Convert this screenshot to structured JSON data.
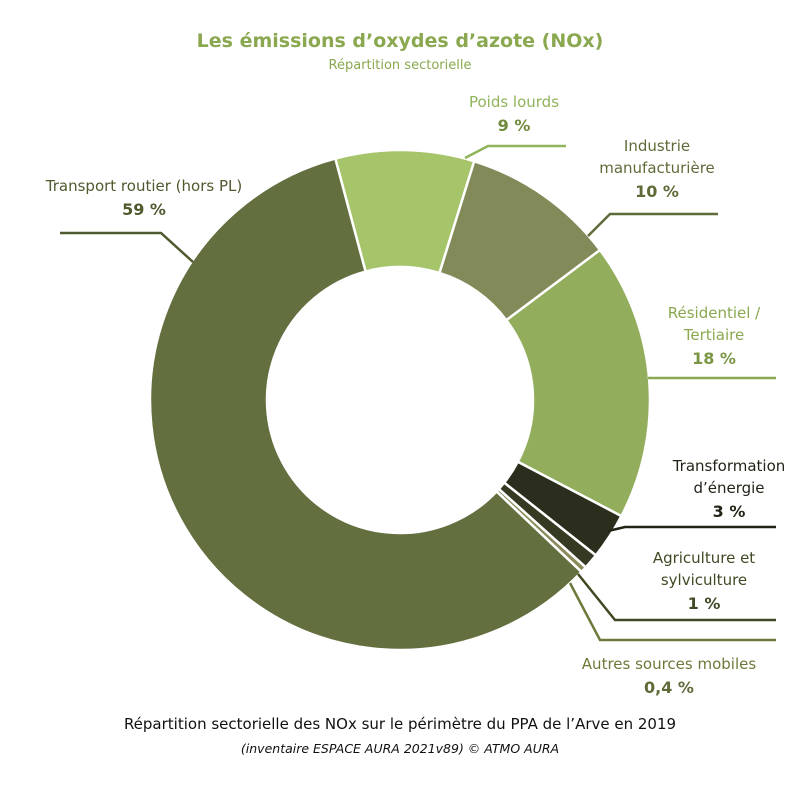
{
  "chart_data": {
    "type": "pie",
    "title": "Les émissions d’oxydes d’azote (NOx)",
    "subtitle": "Répartition sectorielle",
    "footer": "Répartition sectorielle des NOx sur le périmètre du PPA de l’Arve en 2019",
    "source": "(inventaire ESPACE AURA 2021v89) © ATMO AURA",
    "unit": "%",
    "slices": [
      {
        "label_lines": [
          "Poids lourds"
        ],
        "value": 9,
        "value_label": "9 %",
        "color": "#a6c46a",
        "label_color": "#8fb45a",
        "value_color": "#6f8a3a"
      },
      {
        "label_lines": [
          "Industrie",
          "manufacturière"
        ],
        "value": 10,
        "value_label": "10 %",
        "color": "#838a59",
        "label_color": "#5e6b38",
        "value_color": "#5e6b38"
      },
      {
        "label_lines": [
          "Résidentiel /",
          "Tertiaire"
        ],
        "value": 18,
        "value_label": "18 %",
        "color": "#92ad5c",
        "label_color": "#8aa84f",
        "value_color": "#7a9645"
      },
      {
        "label_lines": [
          "Transformation",
          "d’énergie"
        ],
        "value": 3,
        "value_label": "3 %",
        "color": "#2b2e1c",
        "label_color": "#1f2416",
        "value_color": "#1f2416"
      },
      {
        "label_lines": [
          "Agriculture et",
          "sylviculture"
        ],
        "value": 1,
        "value_label": "1 %",
        "color": "#363a22",
        "label_color": "#3f4a24",
        "value_color": "#3f4a24"
      },
      {
        "label_lines": [
          "Autres sources mobiles"
        ],
        "value": 0.4,
        "value_label": "0,4 %",
        "color": "#8a8a5a",
        "label_color": "#6b7a3a",
        "value_color": "#5e6b38"
      },
      {
        "label_lines": [
          "Transport routier (hors PL)"
        ],
        "value": 59,
        "value_label": "59 %",
        "color": "#636f3f",
        "label_color": "#4f5a2e",
        "value_color": "#4f5a2e"
      }
    ]
  }
}
